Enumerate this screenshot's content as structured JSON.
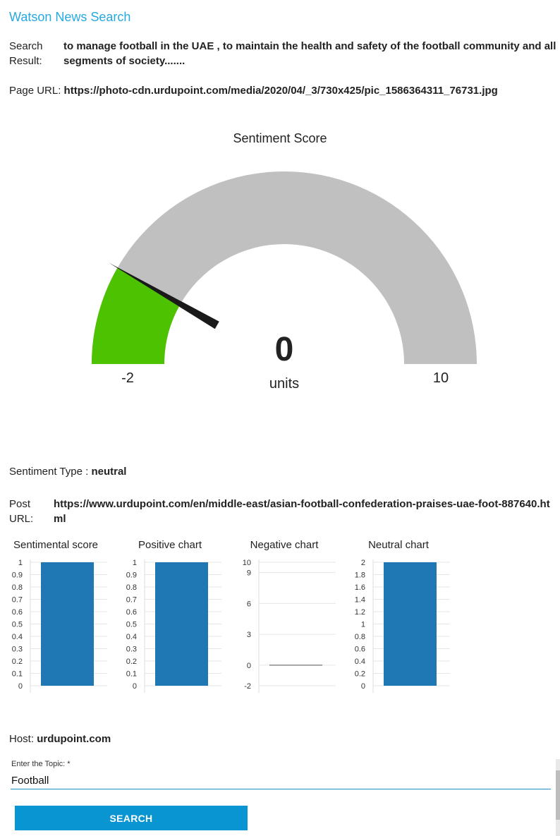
{
  "app": {
    "title": "Watson News Search"
  },
  "search_result": {
    "label": "Search Result:",
    "value": "to manage football in the UAE , to maintain the health and safety of the football community and all segments of society......."
  },
  "page_url": {
    "label": "Page URL:",
    "value": "https://photo-cdn.urdupoint.com/media/2020/04/_3/730x425/pic_1586364311_76731.jpg"
  },
  "gauge": {
    "title": "Sentiment Score",
    "value": 0,
    "value_text": "0",
    "units": "units",
    "min": -2,
    "max": 10,
    "min_text": "-2",
    "max_text": "10",
    "fill_color": "#4cc200",
    "track_color": "#c0c0c0",
    "needle_color": "#1a1a1a"
  },
  "sentiment_type": {
    "label": "Sentiment Type :",
    "value": "neutral"
  },
  "post_url": {
    "label": "Post URL:",
    "value": "https://www.urdupoint.com/en/middle-east/asian-football-confederation-praises-uae-foot-887640.html"
  },
  "chart_data": [
    {
      "type": "bar",
      "title": "Sentimental score",
      "values": [
        1
      ],
      "ylim": [
        0,
        1
      ],
      "yticks": [
        "0",
        "0.1",
        "0.2",
        "0.3",
        "0.4",
        "0.5",
        "0.6",
        "0.7",
        "0.8",
        "0.9",
        "1"
      ],
      "color": "#1f77b4"
    },
    {
      "type": "bar",
      "title": "Positive chart",
      "values": [
        1
      ],
      "ylim": [
        0,
        1
      ],
      "yticks": [
        "0",
        "0.1",
        "0.2",
        "0.3",
        "0.4",
        "0.5",
        "0.6",
        "0.7",
        "0.8",
        "0.9",
        "1"
      ],
      "color": "#1f77b4"
    },
    {
      "type": "bar",
      "title": "Negative chart",
      "values": [
        0
      ],
      "ylim": [
        -2,
        10
      ],
      "yticks": [
        "-2",
        "0",
        "3",
        "6",
        "9",
        "10"
      ],
      "color": "#1f77b4"
    },
    {
      "type": "bar",
      "title": "Neutral chart",
      "values": [
        2
      ],
      "ylim": [
        0,
        2
      ],
      "yticks": [
        "0",
        "0.2",
        "0.4",
        "0.6",
        "0.8",
        "1",
        "1.2",
        "1.4",
        "1.6",
        "1.8",
        "2"
      ],
      "color": "#1f77b4"
    }
  ],
  "host": {
    "label": "Host:",
    "value": "urdupoint.com"
  },
  "topic": {
    "label": "Enter the Topic: *",
    "value": "Football"
  },
  "search_button": {
    "label": "SEARCH"
  }
}
